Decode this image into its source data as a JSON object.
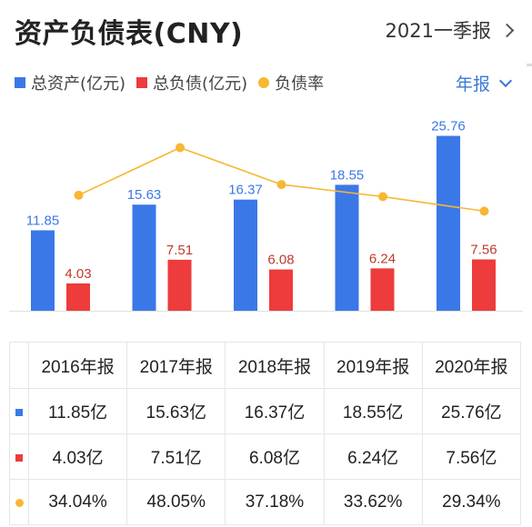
{
  "header": {
    "title": "资产负债表(CNY)",
    "period": "2021一季报"
  },
  "legend": {
    "assets": "总资产(亿元)",
    "liabilities": "总负债(亿元)",
    "ratio": "负债率",
    "frequency": "年报"
  },
  "colors": {
    "assets": "#3b78e7",
    "liabilities": "#ee3b3b",
    "ratio": "#f7b733",
    "ratio_label": "#c0392b"
  },
  "chart_data": {
    "type": "bar",
    "categories": [
      "2016年报",
      "2017年报",
      "2018年报",
      "2019年报",
      "2020年报"
    ],
    "series": [
      {
        "name": "总资产(亿元)",
        "type": "bar",
        "values": [
          11.85,
          15.63,
          16.37,
          18.55,
          25.76
        ]
      },
      {
        "name": "总负债(亿元)",
        "type": "bar",
        "values": [
          4.03,
          7.51,
          6.08,
          6.24,
          7.56
        ]
      },
      {
        "name": "负债率",
        "type": "line",
        "values": [
          34.04,
          48.05,
          37.18,
          33.62,
          29.34
        ]
      }
    ],
    "bar_labels": {
      "assets": [
        "11.85",
        "15.63",
        "16.37",
        "18.55",
        "25.76"
      ],
      "liabilities": [
        "4.03",
        "7.51",
        "6.08",
        "6.24",
        "7.56"
      ]
    },
    "ylim": [
      0,
      26.5
    ],
    "ratio_ylim": [
      0,
      53
    ],
    "grid": false
  },
  "table": {
    "headers": [
      "2016年报",
      "2017年报",
      "2018年报",
      "2019年报",
      "2020年报"
    ],
    "rows": [
      {
        "marker": "square",
        "color": "#3b78e7",
        "cells": [
          "11.85亿",
          "15.63亿",
          "16.37亿",
          "18.55亿",
          "25.76亿"
        ]
      },
      {
        "marker": "square",
        "color": "#ee3b3b",
        "cells": [
          "4.03亿",
          "7.51亿",
          "6.08亿",
          "6.24亿",
          "7.56亿"
        ]
      },
      {
        "marker": "dot",
        "color": "#f7b733",
        "cells": [
          "34.04%",
          "48.05%",
          "37.18%",
          "33.62%",
          "29.34%"
        ]
      }
    ]
  }
}
